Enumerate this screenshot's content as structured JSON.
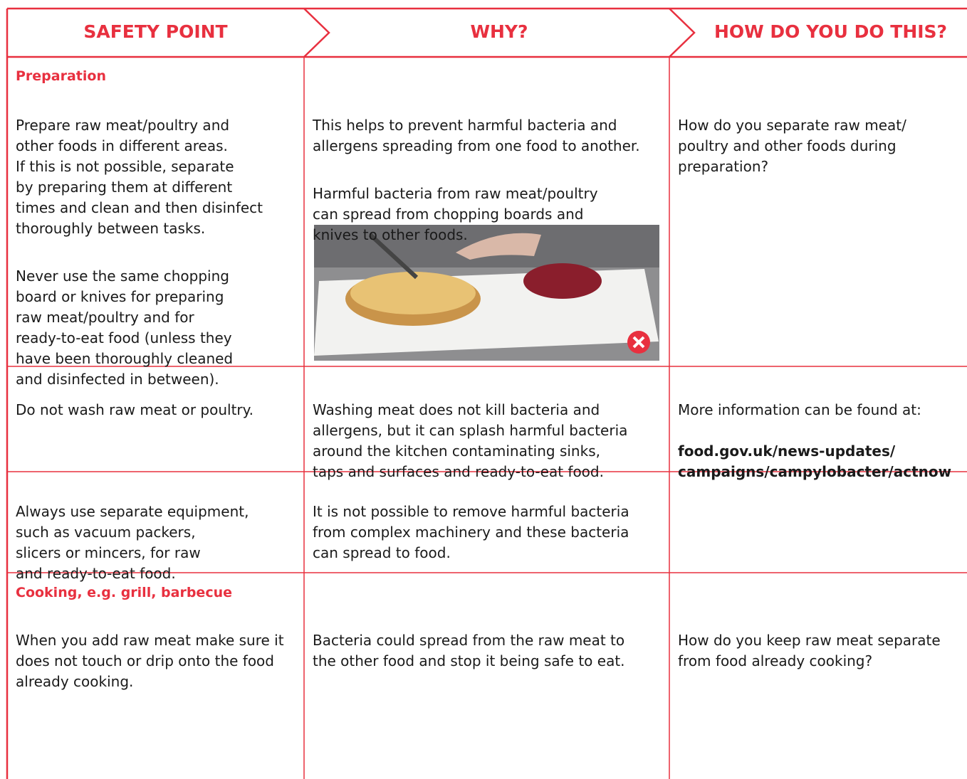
{
  "header": {
    "columns": [
      "SAFETY POINT",
      "WHY?",
      "HOW DO YOU DO THIS?"
    ]
  },
  "rows": [
    {
      "heading": "Preparation",
      "cells": [
        [
          "Prepare raw meat/poultry and\nother foods in different areas.\nIf this is not possible, separate\nby preparing them at different\ntimes and clean and then disinfect\nthoroughly between tasks.",
          "Never use the same chopping\nboard or knives for preparing\nraw meat/poultry and for\nready-to-eat food (unless they\nhave been thoroughly cleaned\nand disinfected in between)."
        ],
        [
          "This helps to prevent harmful bacteria and\nallergens spreading from one food to another.",
          "Harmful bacteria from raw meat/poultry\ncan spread from chopping boards and\nknives to other foods."
        ],
        [
          "How do you separate raw meat/\npoultry and other foods during\npreparation?"
        ]
      ]
    },
    {
      "cells": [
        [
          "Do not wash raw meat or poultry."
        ],
        [
          "Washing meat does not kill bacteria and\nallergens, but it can splash harmful bacteria\naround the kitchen contaminating sinks,\ntaps and surfaces and ready-to-eat food."
        ],
        [
          "More information can be found at:"
        ]
      ],
      "link": "food.gov.uk/news-updates/\ncampaigns/campylobacter/actnow"
    },
    {
      "cells": [
        [
          "Always use separate equipment,\nsuch as vacuum packers,\nslicers or mincers, for raw\nand ready-to-eat food."
        ],
        [
          "It is not possible to remove harmful bacteria\nfrom complex machinery and these bacteria\ncan spread to food."
        ],
        []
      ]
    },
    {
      "heading": "Cooking, e.g. grill, barbecue",
      "cells": [
        [
          "When you add raw meat make sure it\ndoes not touch or drip onto the food\nalready cooking."
        ],
        [
          "Bacteria could spread from the raw meat to\nthe other food and stop it being safe to eat."
        ],
        [
          "How do you keep raw meat separate\nfrom food already cooking?"
        ]
      ]
    }
  ]
}
